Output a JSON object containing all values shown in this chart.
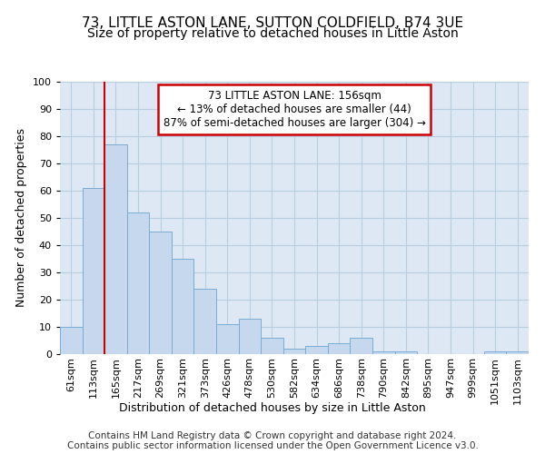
{
  "title1": "73, LITTLE ASTON LANE, SUTTON COLDFIELD, B74 3UE",
  "title2": "Size of property relative to detached houses in Little Aston",
  "xlabel": "Distribution of detached houses by size in Little Aston",
  "ylabel": "Number of detached properties",
  "footer1": "Contains HM Land Registry data © Crown copyright and database right 2024.",
  "footer2": "Contains public sector information licensed under the Open Government Licence v3.0.",
  "bar_labels": [
    "61sqm",
    "113sqm",
    "165sqm",
    "217sqm",
    "269sqm",
    "321sqm",
    "373sqm",
    "426sqm",
    "478sqm",
    "530sqm",
    "582sqm",
    "634sqm",
    "686sqm",
    "738sqm",
    "790sqm",
    "842sqm",
    "895sqm",
    "947sqm",
    "999sqm",
    "1051sqm",
    "1103sqm"
  ],
  "bar_values": [
    10,
    61,
    77,
    52,
    45,
    35,
    24,
    11,
    13,
    6,
    2,
    3,
    4,
    6,
    1,
    1,
    0,
    0,
    0,
    1,
    1
  ],
  "bar_color": "#c5d8ee",
  "bar_edge_color": "#7aadd4",
  "annotation_text": "73 LITTLE ASTON LANE: 156sqm\n← 13% of detached houses are smaller (44)\n87% of semi-detached houses are larger (304) →",
  "annotation_box_color": "#ffffff",
  "annotation_box_edge": "#cc0000",
  "vline_x": 2.0,
  "vline_color": "#cc0000",
  "ylim": [
    0,
    100
  ],
  "yticks": [
    0,
    10,
    20,
    30,
    40,
    50,
    60,
    70,
    80,
    90,
    100
  ],
  "grid_color": "#b8cde0",
  "bg_color": "#dde8f4",
  "title1_fontsize": 11,
  "title2_fontsize": 10,
  "xlabel_fontsize": 9,
  "ylabel_fontsize": 9,
  "tick_fontsize": 8,
  "annotation_fontsize": 8.5,
  "footer_fontsize": 7.5
}
